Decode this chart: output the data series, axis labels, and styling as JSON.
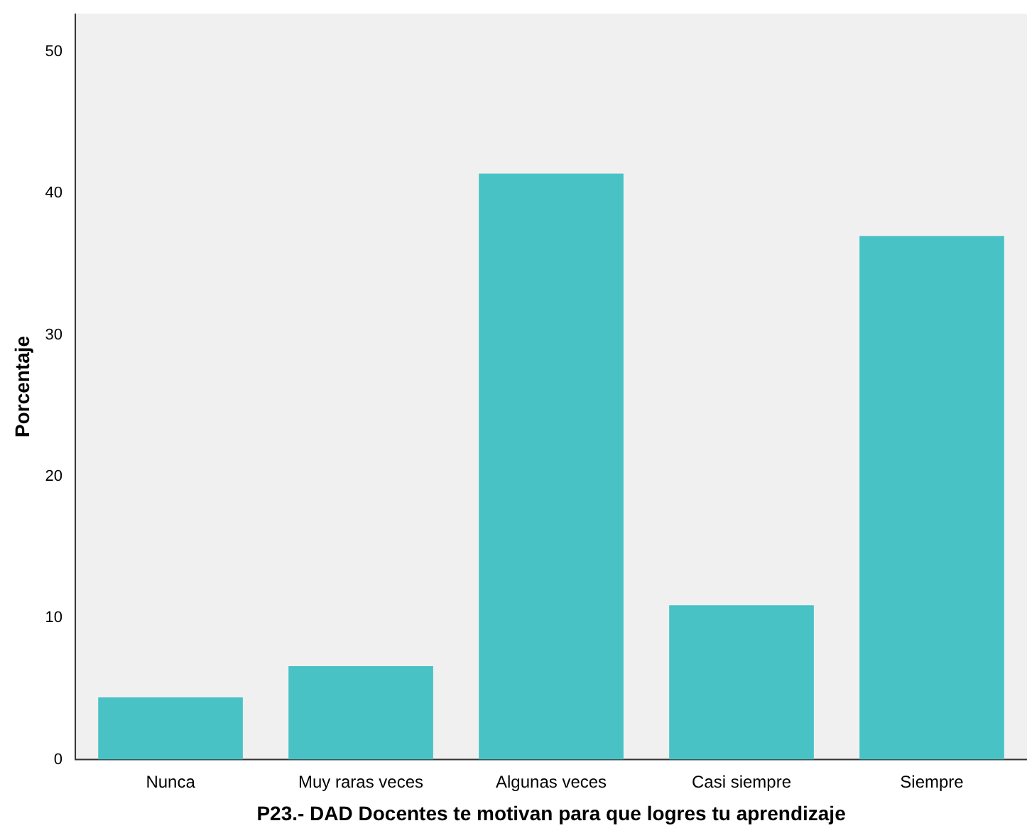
{
  "chart_data": {
    "type": "bar",
    "xlabel": "P23.- DAD Docentes te motivan para que logres tu aprendizaje",
    "ylabel": "Porcentaje",
    "categories": [
      "Nunca",
      "Muy raras veces",
      "Algunas veces",
      "Casi siempre",
      "Siempre"
    ],
    "values": [
      4.4,
      6.6,
      41.4,
      10.9,
      37.0
    ],
    "color": "#48c2c5",
    "ylim": [
      0,
      52.7
    ],
    "yticks": [
      0,
      10,
      20,
      30,
      40,
      50
    ],
    "grid": false,
    "legend": false
  }
}
